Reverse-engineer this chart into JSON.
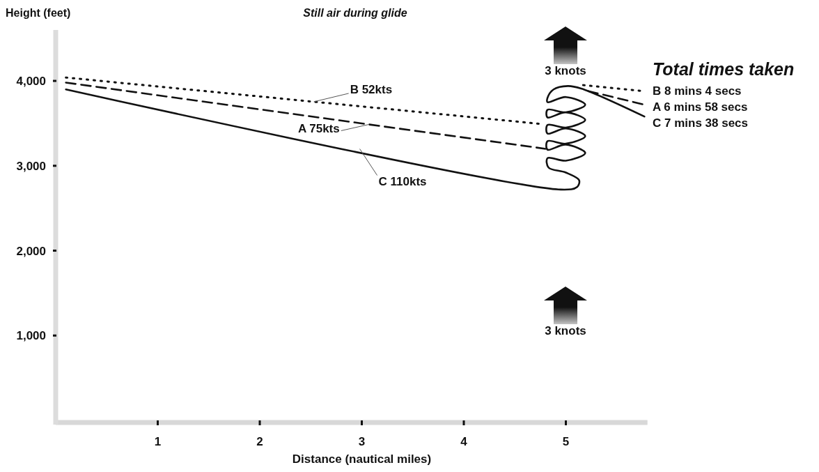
{
  "chart_data": {
    "type": "line",
    "title": "Still air during glide",
    "ylabel": "Height (feet)",
    "xlabel": "Distance (nautical miles)",
    "xlim": [
      0,
      5.8
    ],
    "xticks": [
      1,
      2,
      3,
      4,
      5
    ],
    "ylim": [
      0,
      4600
    ],
    "yticks": [
      {
        "value": 1000,
        "label": "1,000"
      },
      {
        "value": 2000,
        "label": "2,000"
      },
      {
        "value": 3000,
        "label": "3,000"
      },
      {
        "value": 4000,
        "label": "4,000"
      }
    ],
    "grid": false,
    "series": [
      {
        "name": "A 75kts",
        "color": "#111111",
        "line_style": "dashed",
        "x": [
          0.1,
          4.8,
          4.9,
          5.22,
          5.77
        ],
        "values": [
          3980,
          3200,
          null,
          3880,
          3720
        ]
      },
      {
        "name": "B 52kts",
        "color": "#111111",
        "line_style": "dotted",
        "x": [
          0.1,
          4.78,
          4.9,
          5.17,
          5.76
        ],
        "values": [
          4040,
          3490,
          null,
          3950,
          3880
        ]
      },
      {
        "name": "C 110kts",
        "color": "#111111",
        "line_style": "solid",
        "x": [
          0.1,
          4.95,
          5.11,
          5.13,
          5.0,
          4.83,
          4.82,
          5.0,
          5.19,
          5.0,
          4.82,
          4.82,
          5.0,
          5.19,
          5.0,
          4.82,
          4.82,
          5.0,
          5.19,
          5.0,
          4.82,
          4.82,
          5.0,
          5.19,
          5.0,
          4.82,
          4.82,
          4.88,
          5.02,
          5.15,
          5.77
        ],
        "values": [
          3900,
          2720,
          2750,
          2830,
          2920,
          2980,
          3090,
          3060,
          3150,
          3250,
          3190,
          3290,
          3260,
          3350,
          3440,
          3380,
          3480,
          3450,
          3540,
          3630,
          3570,
          3660,
          3630,
          3720,
          3810,
          3750,
          3800,
          3900,
          3940,
          3910,
          3580
        ]
      }
    ],
    "annotations": [
      "Total times taken",
      "B 8 mins 4 secs",
      "A 6 mins 58 secs",
      "C 7 mins 38 secs",
      "3 knots",
      "3 knots"
    ]
  }
}
